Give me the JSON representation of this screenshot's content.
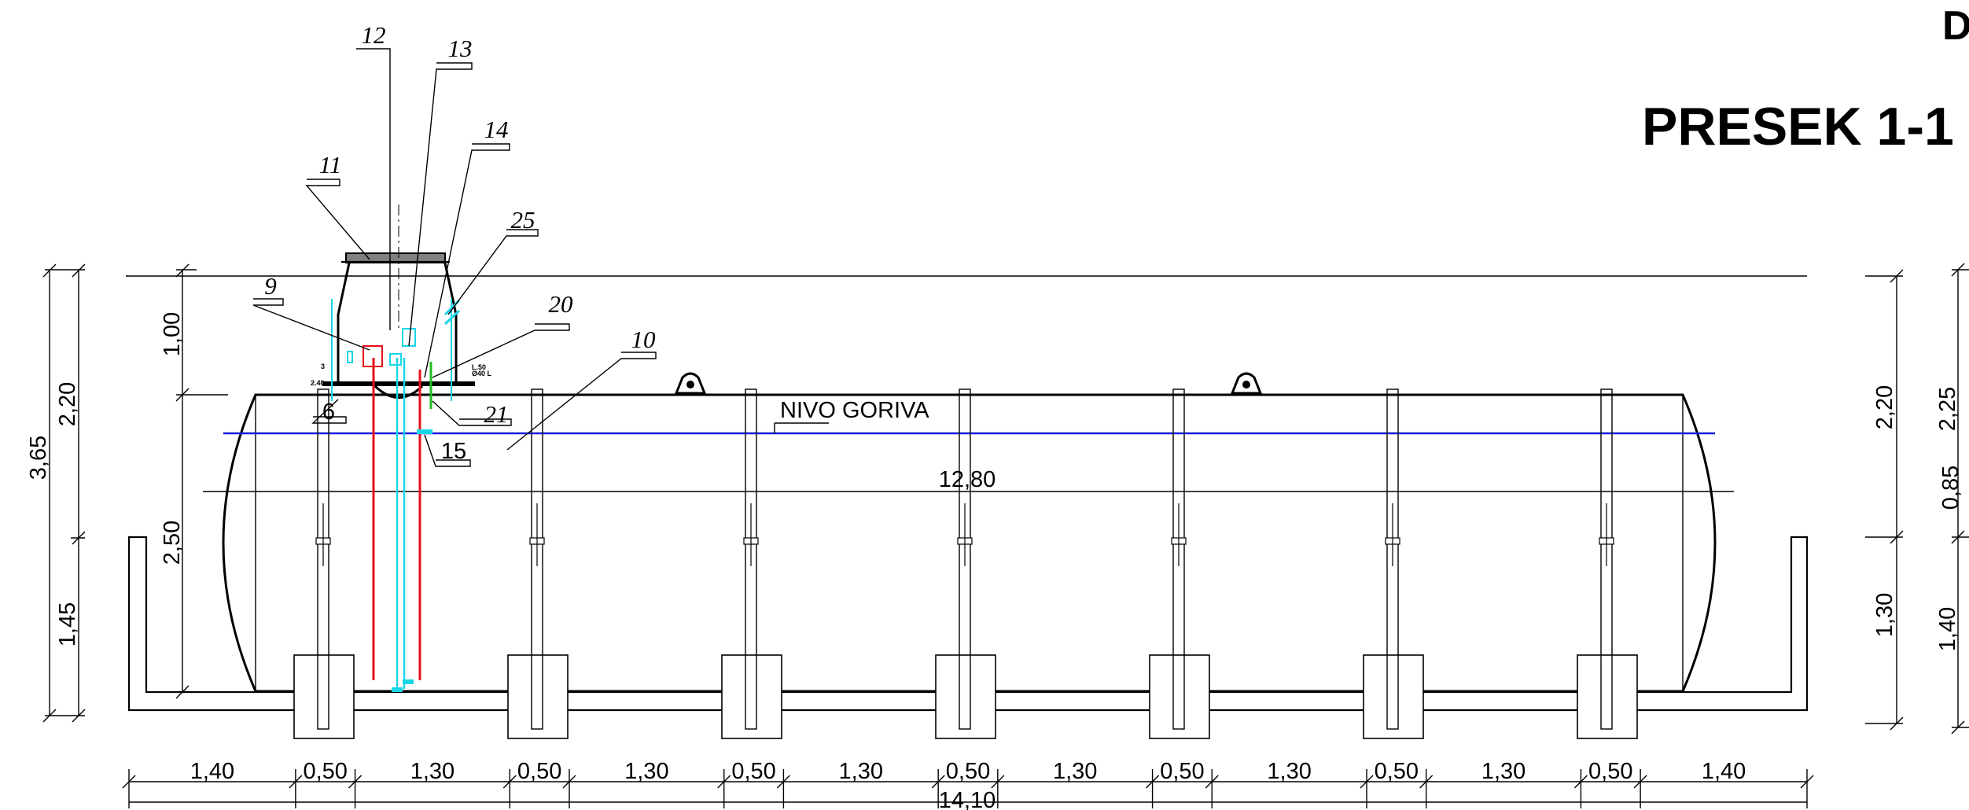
{
  "title": "PRESEK 1-1",
  "edge_label": "D",
  "fuel_level_label": "NIVO GORIVA",
  "callouts": {
    "c12": "12",
    "c13": "13",
    "c14": "14",
    "c11": "11",
    "c25": "25",
    "c9": "9",
    "c20": "20",
    "c10": "10",
    "c6": "6",
    "c21": "21",
    "c15": "15"
  },
  "tiny_labels": {
    "a": "3",
    "b": "2.40",
    "c": "L.50",
    "d": "Ø40 L"
  },
  "dims": {
    "tank_length": "12,80",
    "total_length": "14,10",
    "bottom_segments": [
      "1,40",
      "0,50",
      "1,30",
      "0,50",
      "1,30",
      "0,50",
      "1,30",
      "0,50",
      "1,30",
      "0,50",
      "1,30",
      "0,50",
      "1,30",
      "0,50",
      "1,40"
    ],
    "left_outer": {
      "total": "3,65",
      "upper": "2,20",
      "lower": "1,45"
    },
    "left_inner": {
      "top": "1,00",
      "body": "2,50"
    },
    "right_a": {
      "upper": "2,20",
      "lower": "1,30"
    },
    "right_b": {
      "upper": "2,25",
      "mid": "0,85",
      "lower": "1,40"
    }
  },
  "colors": {
    "line": "#000000",
    "fuel_level": "#1a1adb",
    "pipe_red": "#e8101a",
    "pipe_cyan": "#19d6e6",
    "pipe_green": "#1fbf1f",
    "lid": "#808080"
  }
}
